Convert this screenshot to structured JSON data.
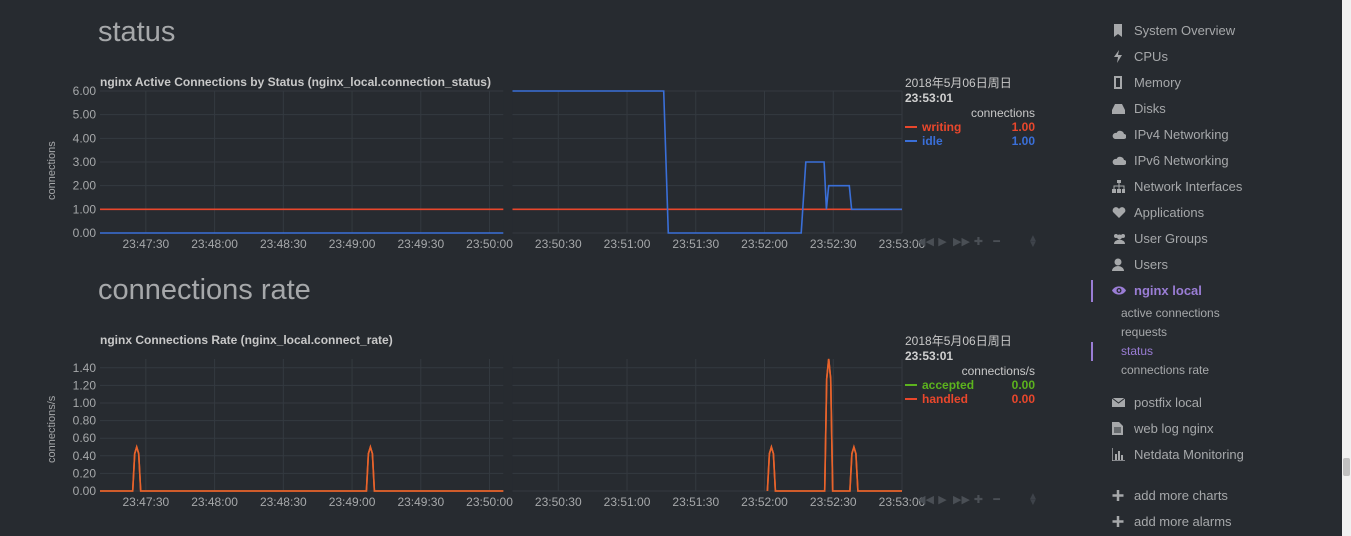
{
  "colors": {
    "background": "#272b30",
    "grid": "#343a40",
    "writing": "#e9472c",
    "idle": "#3a6fd8",
    "accepted": "#5cb31e",
    "handled": "#e9472c",
    "orange": "#e8632b",
    "active_nav": "#9a7dd5"
  },
  "sections": [
    {
      "title": "status",
      "chart_title": "nginx Active Connections by Status (nginx_local.connection_status)",
      "ylabel": "connections",
      "legend": {
        "date": "2018年5月06日周日",
        "time": "23:53:01",
        "units": "connections",
        "rows": [
          {
            "name": "writing",
            "value": "1.00"
          },
          {
            "name": "idle",
            "value": "1.00"
          }
        ]
      }
    },
    {
      "title": "connections rate",
      "chart_title": "nginx Connections Rate (nginx_local.connect_rate)",
      "ylabel": "connections/s",
      "legend": {
        "date": "2018年5月06日周日",
        "time": "23:53:01",
        "units": "connections/s",
        "rows": [
          {
            "name": "accepted",
            "value": "0.00"
          },
          {
            "name": "handled",
            "value": "0.00"
          }
        ]
      }
    }
  ],
  "chart_data": [
    {
      "type": "line",
      "title": "nginx Active Connections by Status (nginx_local.connection_status)",
      "ylabel": "connections",
      "ylim": [
        0,
        6
      ],
      "y_ticks": [
        "0.00",
        "1.00",
        "2.00",
        "3.00",
        "4.00",
        "5.00",
        "6.00"
      ],
      "x_ticks": [
        "23:47:30",
        "23:48:00",
        "23:48:30",
        "23:49:00",
        "23:49:30",
        "23:50:00",
        "23:50:30",
        "23:51:00",
        "23:51:30",
        "23:52:00",
        "23:52:30",
        "23:53:00"
      ],
      "x_range": [
        "23:47:10",
        "23:53:00"
      ],
      "gap": [
        "23:50:06",
        "23:50:10"
      ],
      "series": [
        {
          "name": "writing",
          "color": "#e9472c",
          "points": [
            [
              "23:47:10",
              1
            ],
            [
              "23:50:06",
              1
            ],
            [
              "23:50:10",
              1
            ],
            [
              "23:53:00",
              1
            ]
          ]
        },
        {
          "name": "idle",
          "color": "#3a6fd8",
          "points": [
            [
              "23:47:10",
              0
            ],
            [
              "23:50:06",
              0
            ],
            [
              "23:50:10",
              6
            ],
            [
              "23:51:16",
              6
            ],
            [
              "23:51:18",
              0
            ],
            [
              "23:52:16",
              0
            ],
            [
              "23:52:18",
              3
            ],
            [
              "23:52:26",
              3
            ],
            [
              "23:52:27",
              1
            ],
            [
              "23:52:28",
              2
            ],
            [
              "23:52:37",
              2
            ],
            [
              "23:52:38",
              1
            ],
            [
              "23:53:00",
              1
            ]
          ]
        }
      ]
    },
    {
      "type": "line",
      "title": "nginx Connections Rate (nginx_local.connect_rate)",
      "ylabel": "connections/s",
      "ylim": [
        0,
        1.5
      ],
      "y_ticks": [
        "0.00",
        "0.20",
        "0.40",
        "0.60",
        "0.80",
        "1.00",
        "1.20",
        "1.40"
      ],
      "x_ticks": [
        "23:47:30",
        "23:48:00",
        "23:48:30",
        "23:49:00",
        "23:49:30",
        "23:50:00",
        "23:50:30",
        "23:51:00",
        "23:51:30",
        "23:52:00",
        "23:52:30",
        "23:53:00"
      ],
      "x_range": [
        "23:47:10",
        "23:53:00"
      ],
      "gap": [
        "23:50:06",
        "23:50:10"
      ],
      "series": [
        {
          "name": "accepted",
          "color": "#5cb31e",
          "spikes": [
            [
              "23:47:26",
              0.5
            ],
            [
              "23:49:08",
              0.5
            ],
            [
              "23:52:03",
              0.5
            ],
            [
              "23:52:28",
              1.5
            ],
            [
              "23:52:39",
              0.5
            ]
          ]
        },
        {
          "name": "handled",
          "color": "#e8632b",
          "spikes": [
            [
              "23:47:26",
              0.5
            ],
            [
              "23:49:08",
              0.5
            ],
            [
              "23:52:03",
              0.5
            ],
            [
              "23:52:28",
              1.5
            ],
            [
              "23:52:39",
              0.5
            ]
          ]
        }
      ]
    }
  ],
  "toolbox": [
    "◀◀",
    "▶",
    "▶▶",
    "✚",
    "━"
  ],
  "nav": {
    "items": [
      {
        "label": "System Overview",
        "icon": "bookmark-icon"
      },
      {
        "label": "CPUs",
        "icon": "bolt-icon"
      },
      {
        "label": "Memory",
        "icon": "memory-icon"
      },
      {
        "label": "Disks",
        "icon": "hdd-icon"
      },
      {
        "label": "IPv4 Networking",
        "icon": "cloud-icon"
      },
      {
        "label": "IPv6 Networking",
        "icon": "cloud-icon"
      },
      {
        "label": "Network Interfaces",
        "icon": "sitemap-icon"
      },
      {
        "label": "Applications",
        "icon": "heartbeat-icon"
      },
      {
        "label": "User Groups",
        "icon": "users-icon"
      },
      {
        "label": "Users",
        "icon": "user-icon"
      },
      {
        "label": "nginx local",
        "icon": "eye-icon"
      },
      {
        "label": "postfix local",
        "icon": "envelope-icon"
      },
      {
        "label": "web log nginx",
        "icon": "file-icon"
      },
      {
        "label": "Netdata Monitoring",
        "icon": "bar-chart-icon"
      },
      {
        "label": "add more charts",
        "icon": "plus-icon"
      },
      {
        "label": "add more alarms",
        "icon": "plus-icon"
      }
    ],
    "subitems": [
      "active connections",
      "requests",
      "status",
      "connections rate"
    ]
  }
}
